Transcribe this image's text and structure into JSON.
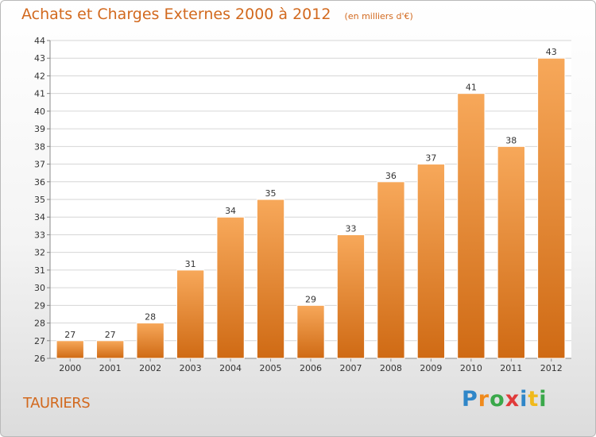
{
  "header": {
    "title": "Achats et Charges Externes 2000 à 2012",
    "subtitle": "(en milliers d'€)"
  },
  "commune": "TAURIERS",
  "logo": {
    "text": "Proxiti",
    "letters": [
      {
        "ch": "P",
        "color": "#2f86c8"
      },
      {
        "ch": "r",
        "color": "#f08a1c"
      },
      {
        "ch": "o",
        "color": "#3aa84a"
      },
      {
        "ch": "x",
        "color": "#e03a3a"
      },
      {
        "ch": "i",
        "color": "#2f86c8"
      },
      {
        "ch": "t",
        "color": "#f0b91c"
      },
      {
        "ch": "i",
        "color": "#3aa84a"
      }
    ]
  },
  "colors": {
    "bar_top": "#f7a85a",
    "bar_bottom": "#cf6a14",
    "text": "#333333",
    "accent": "#d2691e"
  },
  "chart_data": {
    "type": "bar",
    "title": "Achats et Charges Externes 2000 à 2012",
    "subtitle": "(en milliers d'€)",
    "categories": [
      "2000",
      "2001",
      "2002",
      "2003",
      "2004",
      "2005",
      "2006",
      "2007",
      "2008",
      "2009",
      "2010",
      "2011",
      "2012"
    ],
    "values": [
      27,
      27,
      28,
      31,
      34,
      35,
      29,
      33,
      36,
      37,
      41,
      38,
      43
    ],
    "ylim": [
      26,
      44
    ],
    "yticks": [
      26,
      27,
      28,
      29,
      30,
      31,
      32,
      33,
      34,
      35,
      36,
      37,
      38,
      39,
      40,
      41,
      42,
      43,
      44
    ],
    "grid": true,
    "legend": "none"
  }
}
